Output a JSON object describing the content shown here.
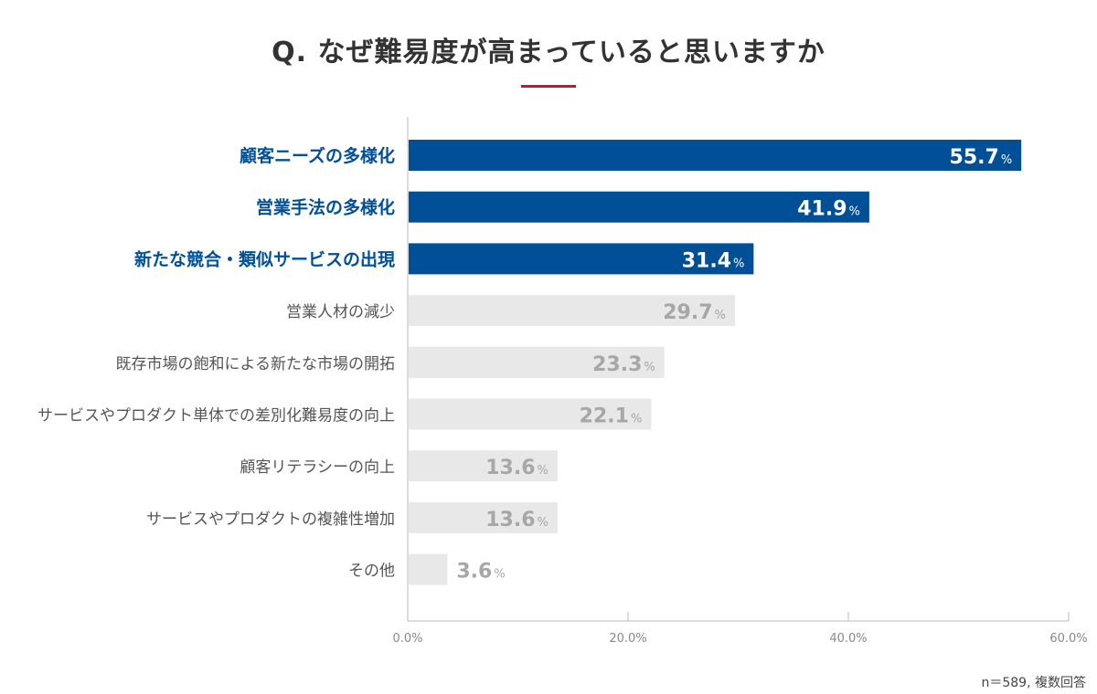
{
  "title": "Q. なぜ難易度が高まっていると思いますか",
  "note": "n＝589, 複数回答",
  "colors": {
    "highlight_bar": "#004f97",
    "highlight_label": "#004f97",
    "normal_bar": "#e8e8e8",
    "normal_label": "#555555",
    "normal_value": "#a7a7a7",
    "highlight_value": "#ffffff",
    "axis": "#bbbbbb",
    "tick_label": "#888888",
    "accent_rule": "#d0102a"
  },
  "chart_data": {
    "type": "bar",
    "orientation": "horizontal",
    "title": "Q. なぜ難易度が高まっていると思いますか",
    "xlim": [
      0,
      60
    ],
    "ticks": [
      {
        "value": 0,
        "label": "0.0%"
      },
      {
        "value": 20,
        "label": "20.0%"
      },
      {
        "value": 40,
        "label": "40.0%"
      },
      {
        "value": 60,
        "label": "60.0%"
      }
    ],
    "unit": "%",
    "categories": [
      "顧客ニーズの多様化",
      "営業手法の多様化",
      "新たな競合・類似サービスの出現",
      "営業人材の減少",
      "既存市場の飽和による新たな市場の開拓",
      "サービスやプロダクト単体での差別化難易度の向上",
      "顧客リテラシーの向上",
      "サービスやプロダクトの複雑性増加",
      "その他"
    ],
    "values": [
      55.7,
      41.9,
      31.4,
      29.7,
      23.3,
      22.1,
      13.6,
      13.6,
      3.6
    ],
    "value_labels": [
      "55.7",
      "41.9",
      "31.4",
      "29.7",
      "23.3",
      "22.1",
      "13.6",
      "13.6",
      "3.6"
    ],
    "highlighted": [
      true,
      true,
      true,
      false,
      false,
      false,
      false,
      false,
      false
    ]
  }
}
